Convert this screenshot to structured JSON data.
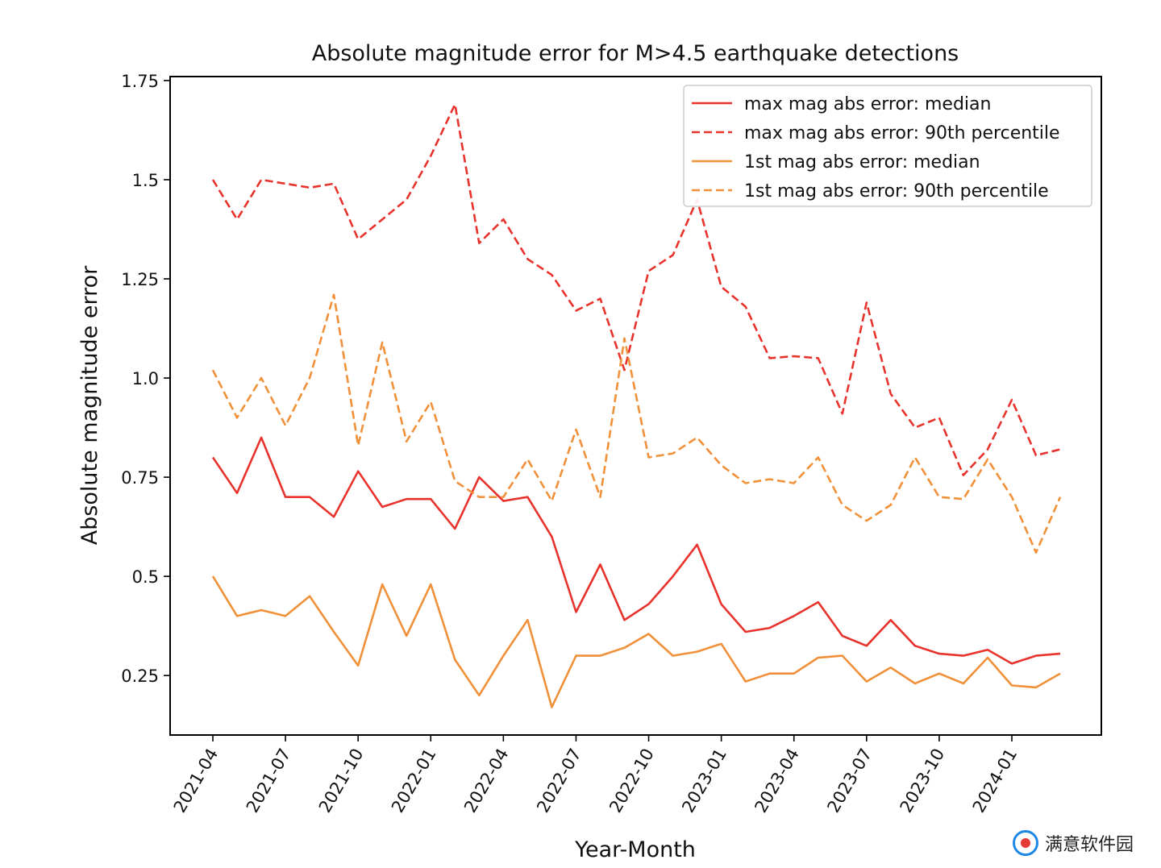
{
  "chart_data": {
    "type": "line",
    "title": "Absolute magnitude error for M>4.5 earthquake detections",
    "xlabel": "Year-Month",
    "ylabel": "Absolute magnitude error",
    "ylim": [
      0.1,
      1.76
    ],
    "yticks": [
      0.25,
      0.5,
      0.75,
      1.0,
      1.25,
      1.5,
      1.75
    ],
    "ytick_labels": [
      "0.25",
      "0.5",
      "0.75",
      "1.0",
      "1.25",
      "1.5",
      "1.75"
    ],
    "x": [
      "2021-04",
      "2021-05",
      "2021-06",
      "2021-07",
      "2021-08",
      "2021-09",
      "2021-10",
      "2021-11",
      "2021-12",
      "2022-01",
      "2022-02",
      "2022-03",
      "2022-04",
      "2022-05",
      "2022-06",
      "2022-07",
      "2022-08",
      "2022-09",
      "2022-10",
      "2022-11",
      "2022-12",
      "2023-01",
      "2023-02",
      "2023-03",
      "2023-04",
      "2023-05",
      "2023-06",
      "2023-07",
      "2023-08",
      "2023-09",
      "2023-10",
      "2023-11",
      "2023-12",
      "2024-01",
      "2024-02",
      "2024-03"
    ],
    "xticks": [
      "2021-04",
      "2021-07",
      "2021-10",
      "2022-01",
      "2022-04",
      "2022-07",
      "2022-10",
      "2023-01",
      "2023-04",
      "2023-07",
      "2023-10",
      "2024-01"
    ],
    "grid": false,
    "legend_position": "top-right",
    "series": [
      {
        "name": "max mag abs error: median",
        "color": "#e8332d",
        "dash": "solid",
        "values": [
          0.8,
          0.71,
          0.85,
          0.7,
          0.7,
          0.65,
          0.765,
          0.675,
          0.695,
          0.695,
          0.62,
          0.75,
          0.69,
          0.7,
          0.6,
          0.41,
          0.53,
          0.39,
          0.43,
          0.5,
          0.58,
          0.43,
          0.36,
          0.37,
          0.4,
          0.435,
          0.35,
          0.325,
          0.39,
          0.325,
          0.305,
          0.3,
          0.315,
          0.28,
          0.3,
          0.305
        ]
      },
      {
        "name": "max mag abs error: 90th percentile",
        "color": "#e8332d",
        "dash": "dashed",
        "values": [
          1.5,
          1.4,
          1.5,
          1.49,
          1.48,
          1.49,
          1.35,
          1.4,
          1.45,
          1.56,
          1.69,
          1.34,
          1.4,
          1.3,
          1.26,
          1.17,
          1.2,
          1.02,
          1.27,
          1.31,
          1.45,
          1.23,
          1.18,
          1.05,
          1.055,
          1.05,
          0.91,
          1.19,
          0.96,
          0.875,
          0.9,
          0.755,
          0.82,
          0.945,
          0.805,
          0.82
        ]
      },
      {
        "name": "1st mag abs error: median",
        "color": "#f0913a",
        "dash": "solid",
        "values": [
          0.5,
          0.4,
          0.415,
          0.4,
          0.45,
          0.36,
          0.275,
          0.48,
          0.35,
          0.48,
          0.29,
          0.2,
          0.3,
          0.39,
          0.17,
          0.3,
          0.3,
          0.32,
          0.355,
          0.3,
          0.31,
          0.33,
          0.235,
          0.255,
          0.255,
          0.295,
          0.3,
          0.235,
          0.27,
          0.23,
          0.255,
          0.23,
          0.295,
          0.225,
          0.22,
          0.255
        ]
      },
      {
        "name": "1st mag abs error: 90th percentile",
        "color": "#f0913a",
        "dash": "dashed",
        "values": [
          1.02,
          0.9,
          1.0,
          0.88,
          1.0,
          1.21,
          0.83,
          1.09,
          0.84,
          0.94,
          0.74,
          0.7,
          0.7,
          0.795,
          0.69,
          0.87,
          0.7,
          1.1,
          0.8,
          0.81,
          0.85,
          0.78,
          0.735,
          0.745,
          0.735,
          0.8,
          0.68,
          0.64,
          0.68,
          0.8,
          0.7,
          0.695,
          0.795,
          0.7,
          0.56,
          0.7
        ]
      }
    ]
  },
  "watermark": {
    "text": "满意软件园"
  }
}
